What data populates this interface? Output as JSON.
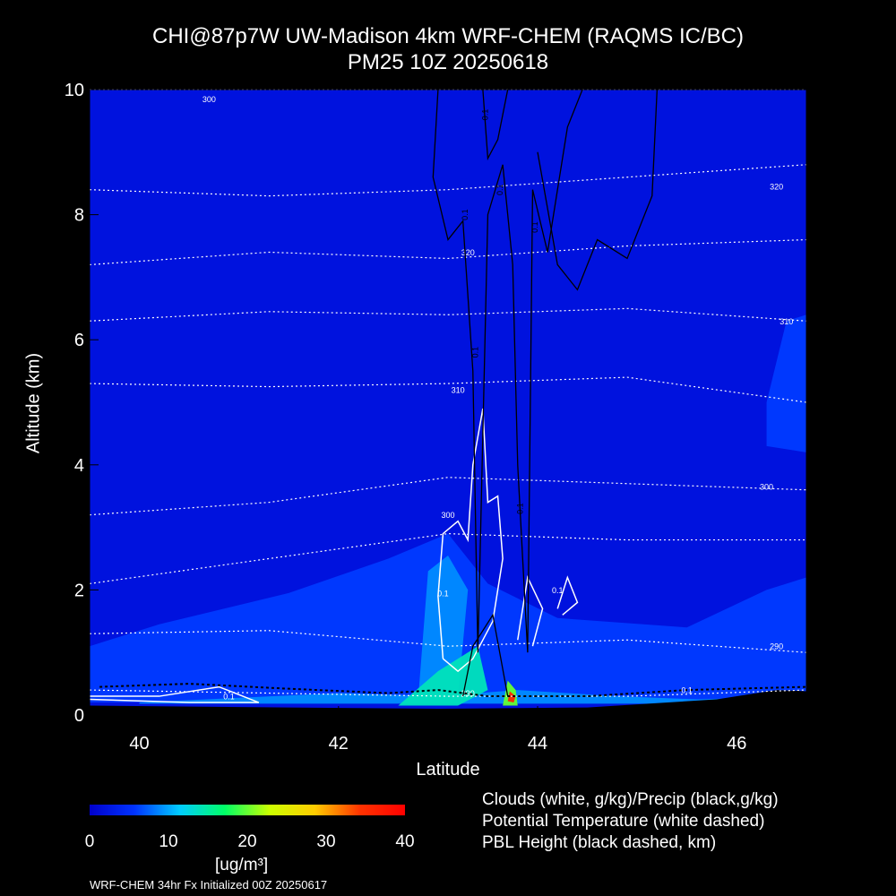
{
  "header": {
    "title": "CHI@87p7W UW-Madison 4km WRF-CHEM (RAQMS IC/BC)",
    "subtitle": "PM25 10Z 20250618"
  },
  "axes": {
    "xlabel": "Latitude",
    "ylabel": "Altitude (km)"
  },
  "colorbar": {
    "units": "[ug/m³]",
    "ticks": [
      "0",
      "10",
      "20",
      "30",
      "40"
    ],
    "range": [
      0,
      40
    ],
    "colors": [
      "#0000cc",
      "#0033ff",
      "#00ccff",
      "#00ff66",
      "#ccff00",
      "#ffcc00",
      "#ff3300",
      "#ff0000"
    ]
  },
  "legend_notes": [
    "Clouds (white, g/kg)/Precip (black,g/kg)",
    "Potential Temperature (white dashed)",
    "PBL Height (black dashed, km)"
  ],
  "footer": "WRF-CHEM 34hr  Fx Initialized 00Z 20250617",
  "chart_data": {
    "type": "heatmap",
    "title": "CHI@87p7W UW-Madison 4km WRF-CHEM (RAQMS IC/BC)",
    "subtitle": "PM25 10Z 20250618",
    "xlabel": "Latitude",
    "ylabel": "Altitude (km)",
    "xlim": [
      39.5,
      46.7
    ],
    "ylim": [
      0,
      10
    ],
    "x_ticks": [
      40,
      42,
      44,
      46
    ],
    "y_ticks": [
      0,
      2,
      4,
      6,
      8,
      10
    ],
    "x_tick_labels": [
      "40",
      "42",
      "44",
      "46"
    ],
    "y_tick_labels": [
      "0",
      "2",
      "4",
      "6",
      "8",
      "10"
    ],
    "colorbar_range": [
      0,
      40
    ],
    "background_value": 2,
    "pm25_regions": [
      {
        "level": 6,
        "points": [
          [
            40.2,
            1.45
          ],
          [
            41.5,
            1.95
          ],
          [
            42.5,
            2.5
          ],
          [
            43.1,
            2.9
          ],
          [
            43.5,
            2.1
          ],
          [
            44.2,
            1.55
          ],
          [
            45.5,
            1.4
          ],
          [
            46.3,
            2.0
          ],
          [
            46.7,
            2.2
          ],
          [
            46.7,
            0.2
          ],
          [
            39.5,
            0.2
          ],
          [
            39.5,
            1.1
          ]
        ]
      },
      {
        "level": 6,
        "points": [
          [
            46.3,
            5.0
          ],
          [
            46.5,
            6.3
          ],
          [
            46.7,
            6.4
          ],
          [
            46.7,
            4.2
          ],
          [
            46.3,
            4.3
          ]
        ]
      },
      {
        "level": 9,
        "points": [
          [
            42.8,
            0.25
          ],
          [
            42.9,
            2.3
          ],
          [
            43.1,
            2.55
          ],
          [
            43.3,
            2.0
          ],
          [
            43.2,
            0.3
          ]
        ]
      },
      {
        "level": 9,
        "points": [
          [
            40.0,
            0.2
          ],
          [
            42.0,
            0.35
          ],
          [
            43.0,
            0.3
          ],
          [
            43.8,
            0.4
          ],
          [
            44.8,
            0.3
          ],
          [
            45.6,
            0.25
          ],
          [
            46.7,
            0.3
          ],
          [
            46.7,
            0.18
          ],
          [
            40.0,
            0.18
          ]
        ]
      },
      {
        "level": 14,
        "points": [
          [
            42.6,
            0.15
          ],
          [
            43.0,
            0.7
          ],
          [
            43.4,
            1.1
          ],
          [
            43.5,
            0.4
          ],
          [
            43.2,
            0.15
          ]
        ]
      },
      {
        "level": 20,
        "points": [
          [
            43.65,
            0.15
          ],
          [
            43.7,
            0.55
          ],
          [
            43.78,
            0.4
          ],
          [
            43.8,
            0.15
          ]
        ]
      },
      {
        "level": 36,
        "points": [
          [
            43.7,
            0.22
          ],
          [
            43.72,
            0.38
          ],
          [
            43.78,
            0.3
          ],
          [
            43.76,
            0.2
          ]
        ]
      }
    ],
    "theta_contours": [
      {
        "label": "300",
        "label_at": [
          40.7,
          9.8
        ],
        "y": [
          10.0,
          10.0,
          10.0,
          10.0,
          10.0
        ]
      },
      {
        "label": "320",
        "label_at": [
          46.4,
          8.4
        ],
        "y": [
          8.4,
          8.3,
          8.4,
          8.6,
          8.8
        ]
      },
      {
        "label": "320",
        "label_at": [
          43.3,
          7.35
        ],
        "y": [
          7.2,
          7.4,
          7.3,
          7.5,
          7.6
        ]
      },
      {
        "label": "310",
        "label_at": [
          46.5,
          6.25
        ],
        "y": [
          6.3,
          6.45,
          6.4,
          6.5,
          6.3
        ]
      },
      {
        "label": "310",
        "label_at": [
          43.2,
          5.15
        ],
        "y": [
          5.3,
          5.25,
          5.3,
          5.4,
          5.0
        ]
      },
      {
        "label": "300",
        "label_at": [
          46.3,
          3.6
        ],
        "y": [
          3.2,
          3.4,
          3.8,
          3.7,
          3.6
        ]
      },
      {
        "label": "300",
        "label_at": [
          43.1,
          3.15
        ],
        "y": [
          2.1,
          2.5,
          2.9,
          2.8,
          2.8
        ]
      },
      {
        "label": "290",
        "label_at": [
          46.4,
          1.05
        ],
        "y": [
          1.3,
          1.35,
          1.1,
          1.2,
          1.0
        ]
      },
      {
        "label": "290",
        "label_at": [
          43.3,
          0.3
        ],
        "y": [
          0.4,
          0.35,
          0.3,
          0.3,
          0.4
        ]
      }
    ],
    "theta_x": [
      39.5,
      41.3,
      43.1,
      44.9,
      46.7
    ],
    "cloud_labels": [
      {
        "text": "0.1",
        "at": [
          40.9,
          0.25
        ]
      },
      {
        "text": "0.1",
        "at": [
          43.05,
          1.9
        ]
      },
      {
        "text": "0.1",
        "at": [
          44.2,
          1.95
        ]
      },
      {
        "text": "0.1",
        "at": [
          45.5,
          0.35
        ]
      }
    ],
    "precip_labels": [
      {
        "text": "0.1",
        "at": [
          43.5,
          9.6
        ]
      },
      {
        "text": "0.1",
        "at": [
          43.3,
          8.0
        ]
      },
      {
        "text": "0.1",
        "at": [
          43.65,
          8.4
        ]
      },
      {
        "text": "0.1",
        "at": [
          44.0,
          7.8
        ]
      },
      {
        "text": "0.1",
        "at": [
          43.4,
          5.8
        ]
      },
      {
        "text": "0.1",
        "at": [
          43.85,
          3.3
        ]
      }
    ]
  }
}
